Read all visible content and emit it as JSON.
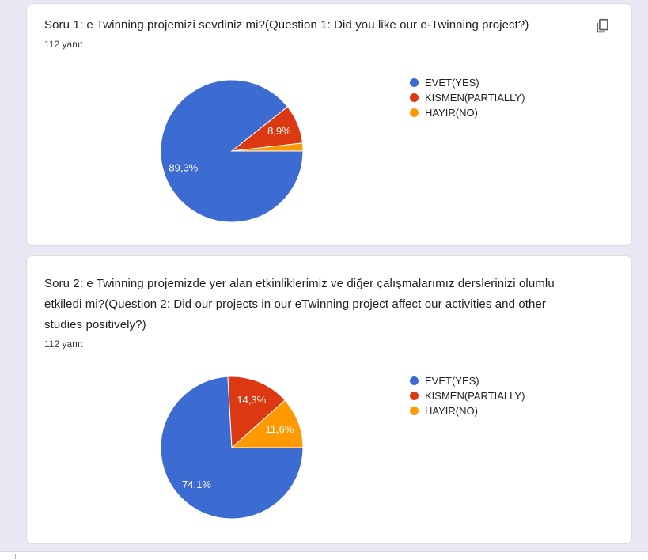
{
  "page": {
    "background_color": "#eae7f4"
  },
  "cards": [
    {
      "title": "Soru 1: e Twinning projemizi sevdiniz mi?(Question 1: Did you like our e-Twinning project?)",
      "responses_label": "112 yanıt",
      "has_copy_button": true
    },
    {
      "title": "Soru 2: e Twinning projemizde yer alan etkinliklerimiz ve diğer çalışmalarımız derslerinizi olumlu etkiledi mi?(Question 2: Did our projects in our eTwinning project affect our activities and other studies positively?)",
      "responses_label": "112 yanıt",
      "has_copy_button": false
    }
  ],
  "chart_data": [
    {
      "type": "pie",
      "title": "Soru 1: e Twinning projemizi sevdiniz mi?(Question 1: Did you like our e-Twinning project?)",
      "categories": [
        "EVET(YES)",
        "KISMEN(PARTIALLY)",
        "HAYIR(NO)"
      ],
      "values": [
        89.3,
        8.9,
        1.8
      ],
      "value_labels": [
        "89,3%",
        "8,9%",
        ""
      ],
      "colors": [
        "#3c6bd2",
        "#dc3912",
        "#ff9900"
      ],
      "label_color": "#ffffff",
      "legend_position": "right",
      "start_angle_deg": 0,
      "direction": "clockwise"
    },
    {
      "type": "pie",
      "title": "Soru 2: e Twinning projemizde yer alan etkinliklerimiz ve diğer çalışmalarımız derslerinizi olumlu etkiledi mi?(Question 2: Did our projects in our eTwinning project affect our activities and other studies positively?)",
      "categories": [
        "EVET(YES)",
        "KISMEN(PARTIALLY)",
        "HAYIR(NO)"
      ],
      "values": [
        74.1,
        14.3,
        11.6
      ],
      "value_labels": [
        "74,1%",
        "14,3%",
        "11,6%"
      ],
      "colors": [
        "#3c6bd2",
        "#dc3912",
        "#ff9900"
      ],
      "label_color": "#ffffff",
      "legend_position": "right",
      "start_angle_deg": 0,
      "direction": "clockwise"
    }
  ]
}
